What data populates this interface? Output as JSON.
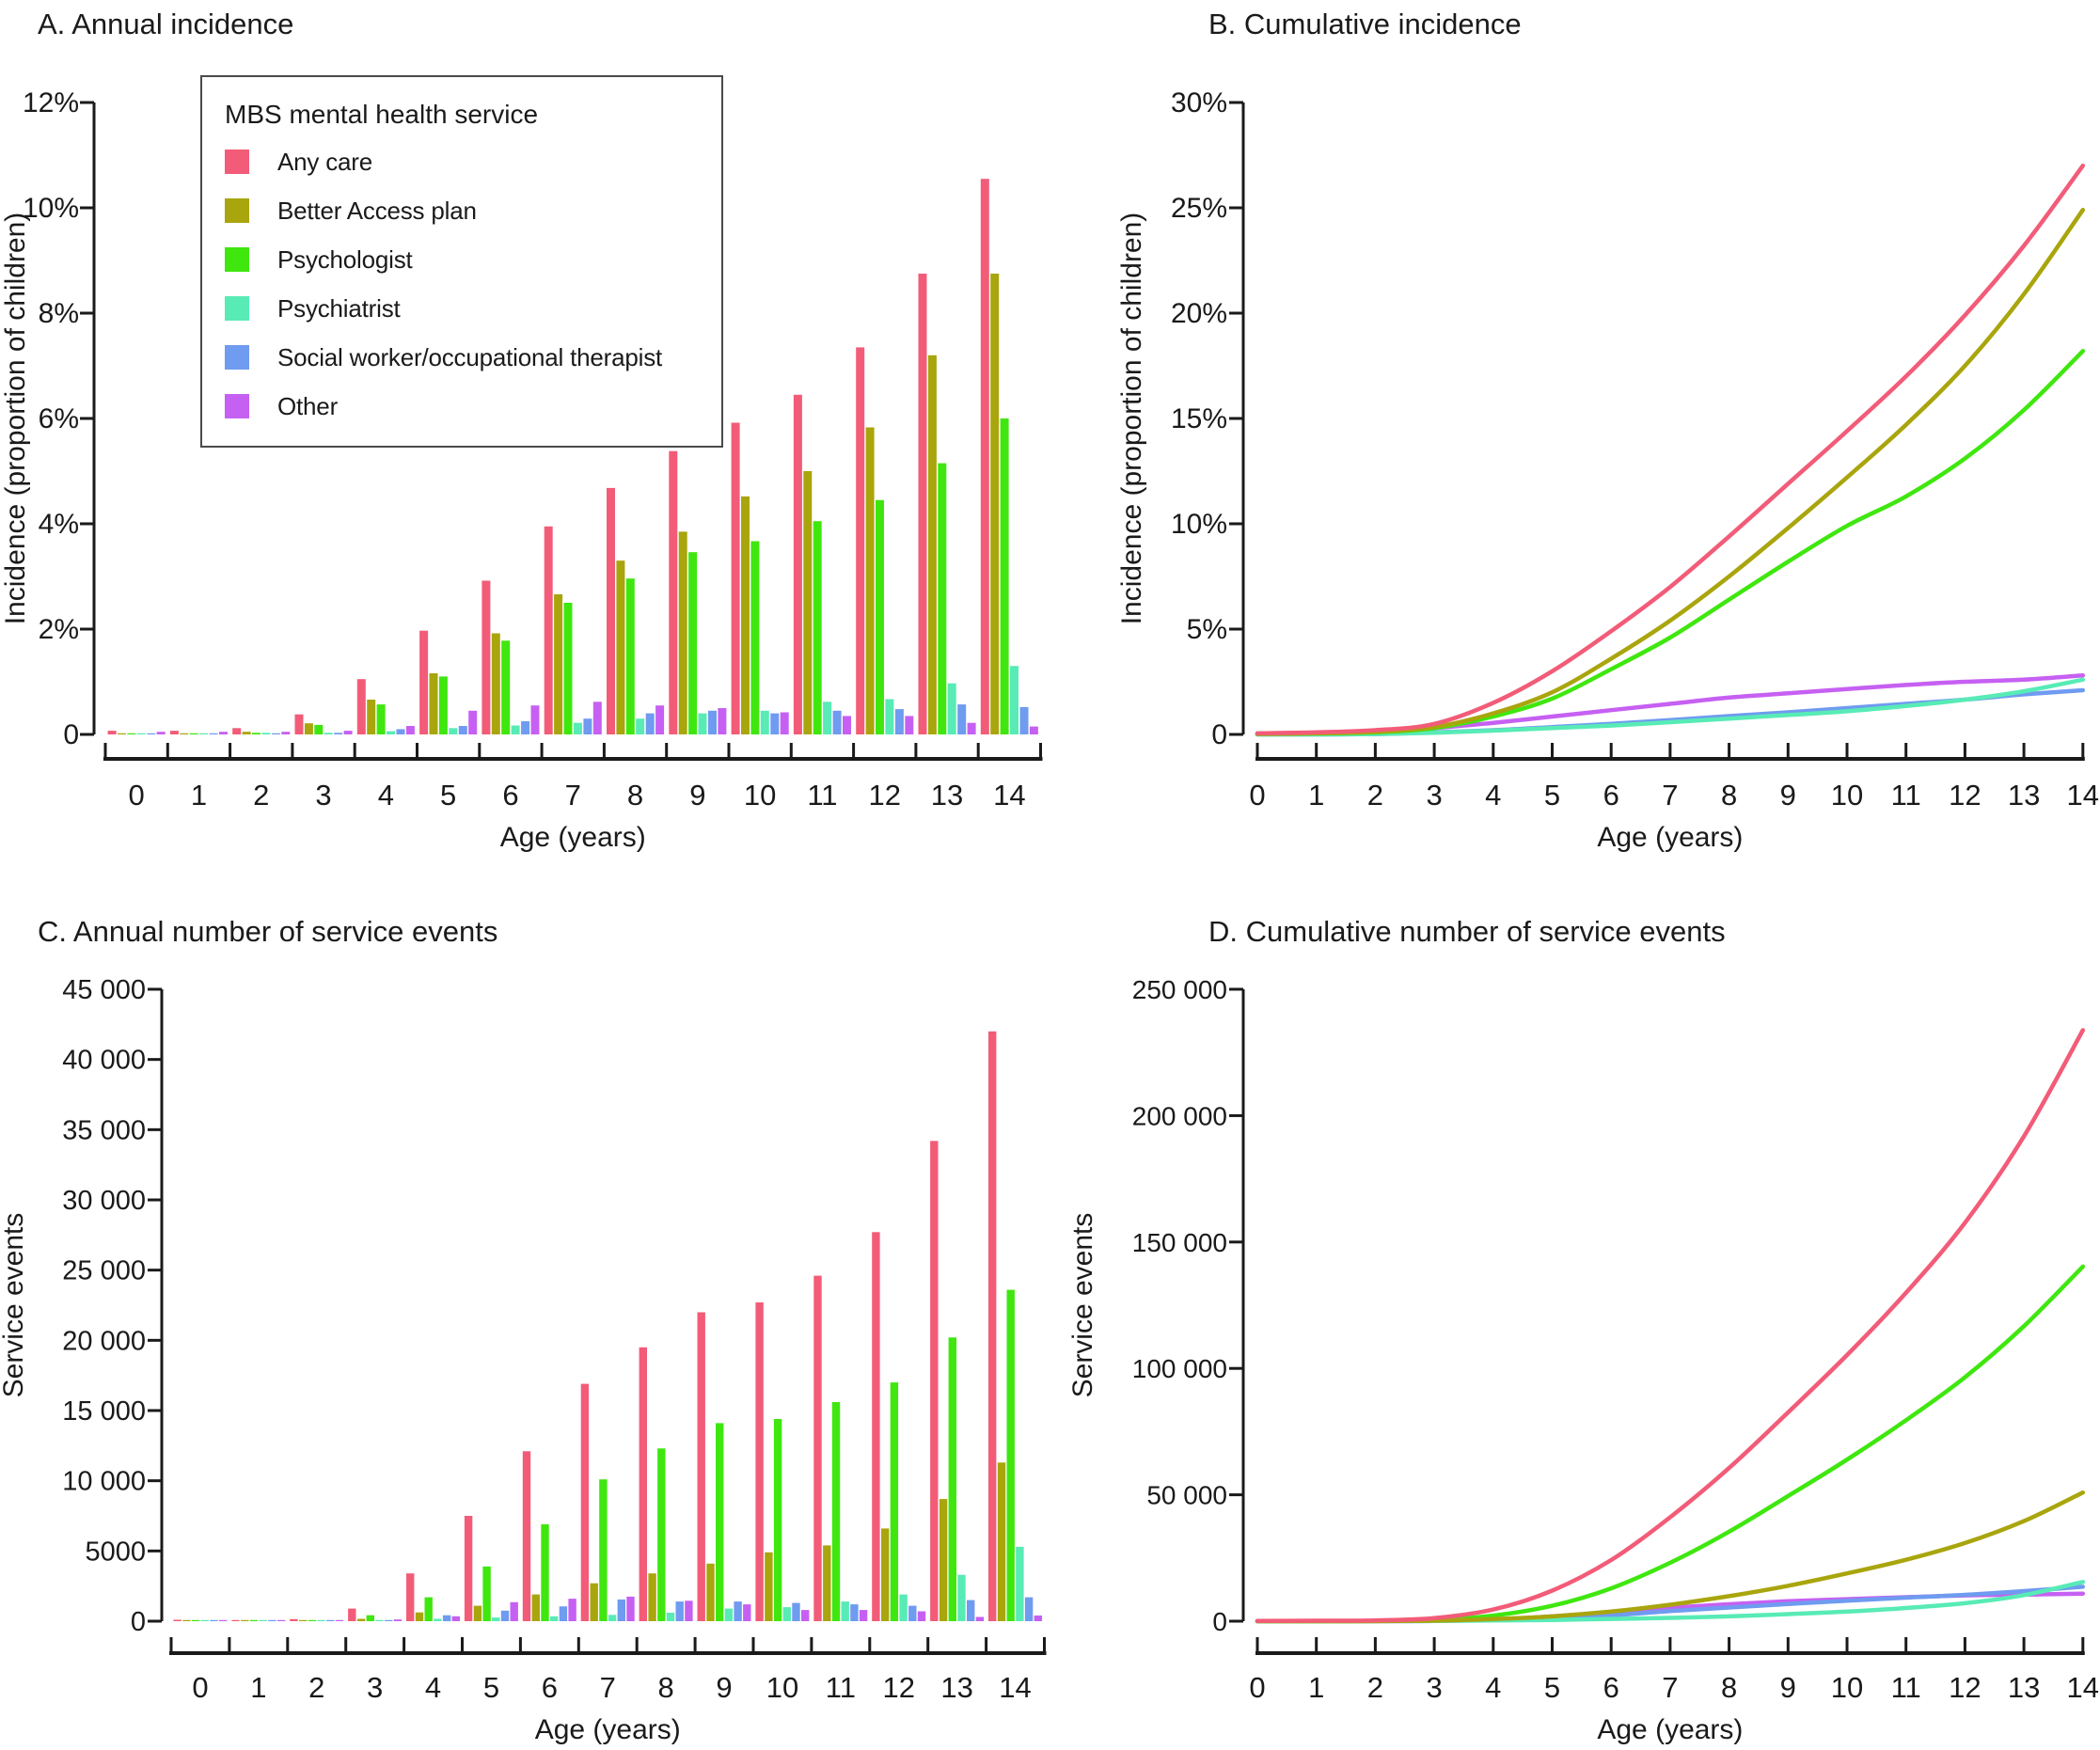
{
  "legend": {
    "title": "MBS mental  health service",
    "items": [
      {
        "label": "Any care",
        "color": "#F25C78"
      },
      {
        "label": "Better Access plan",
        "color": "#A9A50D"
      },
      {
        "label": "Psychologist",
        "color": "#3FE70F"
      },
      {
        "label": "Psychiatrist",
        "color": "#58EBB6"
      },
      {
        "label": "Social worker/occupational therapist",
        "color": "#6F9BF0"
      },
      {
        "label": "Other",
        "color": "#C660F2"
      }
    ]
  },
  "chart_data": [
    {
      "id": "A",
      "title": "A. Annual incidence",
      "type": "bar",
      "xlabel": "Age (years)",
      "ylabel": "Incidence (proportion of children)",
      "categories": [
        "0",
        "1",
        "2",
        "3",
        "4",
        "5",
        "6",
        "7",
        "8",
        "9",
        "10",
        "11",
        "12",
        "13",
        "14"
      ],
      "ylim": [
        0,
        12
      ],
      "yunit": "percent",
      "ytick_labels": [
        "0",
        "2%",
        "4%",
        "6%",
        "8%",
        "10%",
        "12%"
      ],
      "legend_position": "top-left-box",
      "grid": false,
      "series": [
        {
          "name": "Any care",
          "color": "#F25C78",
          "values": [
            0.07,
            0.07,
            0.12,
            0.38,
            1.05,
            1.97,
            2.92,
            3.95,
            4.68,
            5.38,
            5.92,
            6.45,
            7.35,
            8.75,
            10.55
          ]
        },
        {
          "name": "Better Access plan",
          "color": "#A9A50D",
          "values": [
            0.01,
            0.01,
            0.05,
            0.21,
            0.66,
            1.16,
            1.92,
            2.66,
            3.3,
            3.85,
            4.52,
            5.0,
            5.83,
            7.2,
            8.75
          ]
        },
        {
          "name": "Psychologist",
          "color": "#3FE70F",
          "values": [
            0.01,
            0.01,
            0.03,
            0.18,
            0.57,
            1.1,
            1.78,
            2.5,
            2.96,
            3.46,
            3.67,
            4.05,
            4.45,
            5.15,
            6.0
          ]
        },
        {
          "name": "Psychiatrist",
          "color": "#58EBB6",
          "values": [
            0.01,
            0.01,
            0.03,
            0.03,
            0.06,
            0.12,
            0.17,
            0.22,
            0.3,
            0.4,
            0.45,
            0.62,
            0.67,
            0.97,
            1.3
          ]
        },
        {
          "name": "Social worker/occupational therapist",
          "color": "#6F9BF0",
          "values": [
            0.01,
            0.01,
            0.01,
            0.03,
            0.1,
            0.16,
            0.25,
            0.3,
            0.4,
            0.45,
            0.4,
            0.45,
            0.48,
            0.57,
            0.52
          ]
        },
        {
          "name": "Other",
          "color": "#C660F2",
          "values": [
            0.05,
            0.05,
            0.05,
            0.07,
            0.16,
            0.45,
            0.55,
            0.62,
            0.55,
            0.5,
            0.42,
            0.35,
            0.35,
            0.22,
            0.15
          ]
        }
      ]
    },
    {
      "id": "B",
      "title": "B. Cumulative incidence",
      "type": "line",
      "xlabel": "Age (years)",
      "ylabel": "Incidence (proportion of children)",
      "categories": [
        "0",
        "1",
        "2",
        "3",
        "4",
        "5",
        "6",
        "7",
        "8",
        "9",
        "10",
        "11",
        "12",
        "13",
        "14"
      ],
      "ylim": [
        0,
        30
      ],
      "yunit": "percent",
      "ytick_labels": [
        "0",
        "5%",
        "10%",
        "15%",
        "20%",
        "25%",
        "30%"
      ],
      "grid": false,
      "series": [
        {
          "name": "Any care",
          "color": "#F25C78",
          "values": [
            0.05,
            0.1,
            0.2,
            0.5,
            1.5,
            3.0,
            4.9,
            7.0,
            9.4,
            11.9,
            14.4,
            17.0,
            19.9,
            23.2,
            27.0
          ]
        },
        {
          "name": "Better Access plan",
          "color": "#A9A50D",
          "values": [
            0.02,
            0.05,
            0.12,
            0.35,
            1.0,
            2.0,
            3.6,
            5.4,
            7.5,
            9.8,
            12.2,
            14.7,
            17.5,
            20.9,
            24.9
          ]
        },
        {
          "name": "Psychologist",
          "color": "#3FE70F",
          "values": [
            0.02,
            0.05,
            0.1,
            0.3,
            0.85,
            1.7,
            3.1,
            4.6,
            6.4,
            8.2,
            9.9,
            11.3,
            13.1,
            15.4,
            18.2
          ]
        },
        {
          "name": "Psychiatrist",
          "color": "#58EBB6",
          "values": [
            0.0,
            0.0,
            0.02,
            0.08,
            0.18,
            0.3,
            0.42,
            0.58,
            0.75,
            0.92,
            1.1,
            1.35,
            1.65,
            2.05,
            2.6
          ]
        },
        {
          "name": "Social worker/occupational therapist",
          "color": "#6F9BF0",
          "values": [
            0.0,
            0.0,
            0.02,
            0.1,
            0.2,
            0.35,
            0.5,
            0.68,
            0.87,
            1.05,
            1.25,
            1.45,
            1.65,
            1.9,
            2.1
          ]
        },
        {
          "name": "Other",
          "color": "#C660F2",
          "values": [
            0.05,
            0.08,
            0.15,
            0.3,
            0.55,
            0.85,
            1.15,
            1.45,
            1.75,
            1.95,
            2.15,
            2.35,
            2.5,
            2.6,
            2.8
          ]
        }
      ]
    },
    {
      "id": "C",
      "title": "C. Annual number of service events",
      "type": "bar",
      "xlabel": "Age (years)",
      "ylabel": "Service events",
      "categories": [
        "0",
        "1",
        "2",
        "3",
        "4",
        "5",
        "6",
        "7",
        "8",
        "9",
        "10",
        "11",
        "12",
        "13",
        "14"
      ],
      "ylim": [
        0,
        45000
      ],
      "yunit": "count",
      "ytick_labels": [
        "0",
        "5000",
        "10 000",
        "15 000",
        "20 000",
        "25 000",
        "30 000",
        "35 000",
        "40 000",
        "45 000"
      ],
      "grid": false,
      "series": [
        {
          "name": "Any care",
          "color": "#F25C78",
          "values": [
            100,
            60,
            150,
            900,
            3400,
            7500,
            12100,
            16900,
            19500,
            22000,
            22700,
            24600,
            27700,
            34200,
            42000
          ]
        },
        {
          "name": "Better Access plan",
          "color": "#A9A50D",
          "values": [
            5,
            5,
            30,
            170,
            620,
            1100,
            1900,
            2700,
            3400,
            4100,
            4900,
            5400,
            6600,
            8700,
            11300
          ]
        },
        {
          "name": "Psychologist",
          "color": "#3FE70F",
          "values": [
            10,
            10,
            50,
            420,
            1700,
            3900,
            6900,
            10100,
            12300,
            14100,
            14400,
            15600,
            17000,
            20200,
            23600
          ]
        },
        {
          "name": "Psychiatrist",
          "color": "#58EBB6",
          "values": [
            5,
            5,
            40,
            60,
            170,
            260,
            350,
            450,
            600,
            900,
            1000,
            1400,
            1900,
            3300,
            5300
          ]
        },
        {
          "name": "Social worker/occupational therapist",
          "color": "#6F9BF0",
          "values": [
            5,
            5,
            10,
            60,
            420,
            750,
            1050,
            1550,
            1400,
            1400,
            1300,
            1200,
            1100,
            1500,
            1700
          ]
        },
        {
          "name": "Other",
          "color": "#C660F2",
          "values": [
            10,
            40,
            60,
            120,
            350,
            1350,
            1600,
            1750,
            1450,
            1200,
            800,
            800,
            700,
            300,
            400
          ]
        }
      ]
    },
    {
      "id": "D",
      "title": "D. Cumulative number of service events",
      "type": "line",
      "xlabel": "Age (years)",
      "ylabel": "Service events",
      "categories": [
        "0",
        "1",
        "2",
        "3",
        "4",
        "5",
        "6",
        "7",
        "8",
        "9",
        "10",
        "11",
        "12",
        "13",
        "14"
      ],
      "ylim": [
        0,
        250000
      ],
      "yunit": "count",
      "ytick_labels": [
        "0",
        "50 000",
        "100 000",
        "150 000",
        "200 000",
        "250 000"
      ],
      "grid": false,
      "series": [
        {
          "name": "Any care",
          "color": "#F25C78",
          "values": [
            100,
            200,
            300,
            1200,
            4600,
            12100,
            24200,
            41100,
            60600,
            82600,
            105300,
            129900,
            157600,
            191800,
            233800
          ]
        },
        {
          "name": "Better Access plan",
          "color": "#A9A50D",
          "values": [
            0,
            0,
            0,
            200,
            800,
            1900,
            3800,
            6500,
            9900,
            14000,
            18900,
            24300,
            30900,
            39600,
            50900
          ]
        },
        {
          "name": "Psychologist",
          "color": "#3FE70F",
          "values": [
            0,
            0,
            100,
            500,
            2200,
            6100,
            13000,
            23100,
            35400,
            49500,
            63900,
            79500,
            96500,
            116700,
            140300
          ]
        },
        {
          "name": "Psychiatrist",
          "color": "#58EBB6",
          "values": [
            0,
            0,
            100,
            100,
            300,
            500,
            900,
            1300,
            1900,
            2800,
            3800,
            5200,
            7100,
            10300,
            15500
          ]
        },
        {
          "name": "Social worker/occupational therapist",
          "color": "#6F9BF0",
          "values": [
            0,
            0,
            0,
            100,
            500,
            1300,
            2300,
            4000,
            5400,
            6800,
            8100,
            9300,
            10400,
            11900,
            13600
          ]
        },
        {
          "name": "Other",
          "color": "#C660F2",
          "values": [
            0,
            100,
            100,
            200,
            600,
            1900,
            3500,
            5300,
            6700,
            7900,
            8700,
            9500,
            10200,
            10500,
            10900
          ]
        }
      ]
    }
  ]
}
